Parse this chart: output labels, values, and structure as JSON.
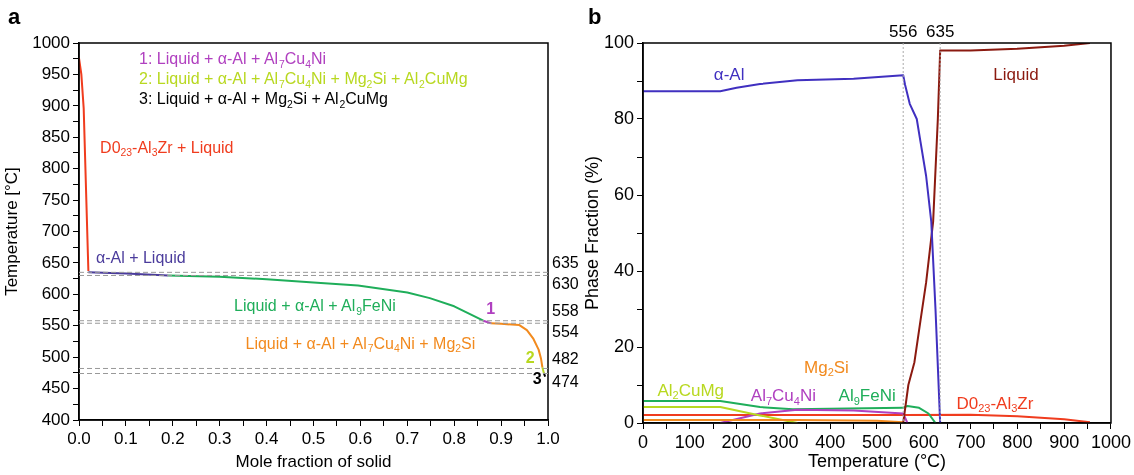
{
  "chart_data": [
    {
      "type": "line",
      "title": "a",
      "xlabel": "Mole fraction of solid",
      "ylabel": "Temperature [°C]",
      "xlim": [
        0,
        1
      ],
      "ylim": [
        400,
        1000
      ],
      "xticks": [
        {
          "value": 0,
          "label": "0.0"
        },
        {
          "value": 0.05,
          "label": null
        },
        {
          "value": 0.1,
          "label": "0.1"
        },
        {
          "value": 0.15,
          "label": null
        },
        {
          "value": 0.2,
          "label": "0.2"
        },
        {
          "value": 0.25,
          "label": null
        },
        {
          "value": 0.3,
          "label": "0.3"
        },
        {
          "value": 0.35,
          "label": null
        },
        {
          "value": 0.4,
          "label": "0.4"
        },
        {
          "value": 0.45,
          "label": null
        },
        {
          "value": 0.5,
          "label": "0.5"
        },
        {
          "value": 0.55,
          "label": null
        },
        {
          "value": 0.6,
          "label": "0.6"
        },
        {
          "value": 0.65,
          "label": null
        },
        {
          "value": 0.7,
          "label": "0.7"
        },
        {
          "value": 0.75,
          "label": null
        },
        {
          "value": 0.8,
          "label": "0.8"
        },
        {
          "value": 0.85,
          "label": null
        },
        {
          "value": 0.9,
          "label": "0.9"
        },
        {
          "value": 0.95,
          "label": null
        },
        {
          "value": 1,
          "label": "1.0"
        }
      ],
      "yticks": [
        400,
        {
          "value": 425,
          "label": null
        },
        450,
        {
          "value": 475,
          "label": null
        },
        500,
        {
          "value": 525,
          "label": null
        },
        550,
        {
          "value": 575,
          "label": null
        },
        600,
        {
          "value": 625,
          "label": null
        },
        650,
        {
          "value": 675,
          "label": null
        },
        700,
        {
          "value": 725,
          "label": null
        },
        750,
        {
          "value": 775,
          "label": null
        },
        800,
        {
          "value": 825,
          "label": null
        },
        850,
        {
          "value": 875,
          "label": null
        },
        900,
        {
          "value": 925,
          "label": null
        },
        950,
        {
          "value": 975,
          "label": null
        },
        1000
      ],
      "grid": false,
      "marker": "none",
      "series": [
        {
          "name": "D0$_{23}$-Al$_{3}$Zr + Liquid",
          "color": "#f03c1e",
          "x": [
            0,
            0.005,
            0.01,
            0.02
          ],
          "values": [
            976,
            950,
            896,
            637
          ]
        },
        {
          "name": "α-Al + Liquid",
          "color": "#4b3c9c",
          "x": [
            0.02,
            0.1,
            0.19
          ],
          "values": [
            635,
            633,
            630
          ]
        },
        {
          "name": "Liquid + α-Al + Al$_{9}$FeNi",
          "color": "#1fae5a",
          "x": [
            0.19,
            0.3,
            0.4,
            0.5,
            0.595,
            0.7,
            0.748,
            0.8,
            0.824,
            0.862
          ],
          "values": [
            630,
            628,
            624,
            619,
            614,
            603,
            594,
            581,
            572,
            558
          ]
        },
        {
          "name": "Liquid + α-Al + Al$_{7}$Cu$_{4}$Ni + Mg$_{2}$Si",
          "color": "#f28a1e",
          "x": [
            0.878,
            0.9,
            0.939,
            0.955,
            0.969,
            0.98,
            0.985,
            0.988
          ],
          "values": [
            554,
            553,
            551,
            543,
            529,
            512,
            498,
            484
          ]
        },
        {
          "name": "1",
          "color": "#b040c0",
          "x": [
            0.862,
            0.878
          ],
          "values": [
            558,
            554
          ]
        },
        {
          "name": "2",
          "color": "#b8d820",
          "x": [
            0.988,
            0.991
          ],
          "values": [
            484,
            475
          ]
        },
        {
          "name": "3",
          "color": "#000000",
          "x": [
            0.991,
            0.994
          ],
          "values": [
            475,
            469
          ]
        }
      ],
      "ref_lines": [
        {
          "axis": "y",
          "value": 635,
          "label": "635",
          "color": "#999999",
          "line_style": "dashed"
        },
        {
          "axis": "y",
          "value": 630,
          "label": "630",
          "color": "#999999",
          "line_style": "dashed"
        },
        {
          "axis": "y",
          "value": 558,
          "label": "558",
          "color": "#999999",
          "line_style": "dashed"
        },
        {
          "axis": "y",
          "value": 554,
          "label": "554",
          "color": "#999999",
          "line_style": "dashed"
        },
        {
          "axis": "y",
          "value": 482,
          "label": "482",
          "color": "#999999",
          "line_style": "dashed"
        },
        {
          "axis": "y",
          "value": 474,
          "label": "474",
          "color": "#999999",
          "line_style": "dashed"
        }
      ],
      "annotations": [
        "1: Liquid + α-Al + Al$_{7}$Cu$_{4}$Ni",
        "2: Liquid + α-Al + Al$_{7}$Cu$_{4}$Ni + Mg$_{2}$Si + Al$_{2}$CuMg",
        "3: Liquid + α-Al + Mg$_{2}$Si + Al$_{2}$CuMg"
      ]
    },
    {
      "type": "line",
      "title": "b",
      "xlabel": "Temperature (°C)",
      "ylabel": "Phase Fraction (%)",
      "xlim": [
        0,
        1000
      ],
      "ylim": [
        0,
        100
      ],
      "xticks": [
        0,
        {
          "value": 50,
          "label": null
        },
        100,
        {
          "value": 150,
          "label": null
        },
        200,
        {
          "value": 250,
          "label": null
        },
        300,
        {
          "value": 350,
          "label": null
        },
        400,
        {
          "value": 450,
          "label": null
        },
        500,
        {
          "value": 550,
          "label": null
        },
        600,
        {
          "value": 650,
          "label": null
        },
        700,
        {
          "value": 750,
          "label": null
        },
        800,
        {
          "value": 850,
          "label": null
        },
        900,
        {
          "value": 950,
          "label": null
        },
        1000
      ],
      "yticks": [
        0,
        {
          "value": 10,
          "label": null
        },
        20,
        {
          "value": 30,
          "label": null
        },
        40,
        {
          "value": 50,
          "label": null
        },
        60,
        {
          "value": 70,
          "label": null
        },
        80,
        {
          "value": 90,
          "label": null
        },
        100
      ],
      "grid": false,
      "marker": "none",
      "series": [
        {
          "name": "α-Al",
          "color": "#4030c0",
          "x": [
            0,
            165,
            200,
            250,
            330,
            450,
            556,
            560,
            570,
            585,
            593,
            605,
            616,
            625,
            635
          ],
          "values": [
            87.3,
            87.3,
            88.2,
            89.2,
            90.2,
            90.6,
            91.5,
            89,
            84,
            80,
            74,
            65,
            53,
            30,
            0
          ]
        },
        {
          "name": "Liquid",
          "color": "#8b1a10",
          "x": [
            556,
            567,
            580,
            593,
            605,
            620,
            630,
            635,
            700,
            800,
            900,
            955
          ],
          "values": [
            0,
            10,
            16,
            27,
            37,
            53,
            80,
            98,
            98,
            98.5,
            99.3,
            100
          ]
        },
        {
          "name": "Mg$_{2}$Si",
          "color": "#f28a1e",
          "x": [
            0,
            330,
            500,
            556
          ],
          "values": [
            0.8,
            0.8,
            0.6,
            0.2
          ]
        },
        {
          "name": "Al$_{2}$CuMg",
          "color": "#b8d820",
          "x": [
            0,
            165,
            250,
            330
          ],
          "values": [
            4.2,
            4.2,
            2,
            0
          ]
        },
        {
          "name": "Al$_{7}$Cu$_{4}$Ni",
          "color": "#b040c0",
          "x": [
            165,
            250,
            330,
            450,
            556,
            565
          ],
          "values": [
            0,
            2.5,
            3.5,
            3.3,
            2.5,
            0
          ]
        },
        {
          "name": "Al$_{9}$FeNi",
          "color": "#1fae5a",
          "x": [
            0,
            165,
            250,
            320,
            556,
            565,
            590,
            610,
            625
          ],
          "values": [
            5.8,
            5.8,
            4.2,
            3.6,
            4,
            4.5,
            4,
            2.5,
            0
          ]
        },
        {
          "name": "D0$_{23}$-Al$_{3}$Zr",
          "color": "#f03c1e",
          "x": [
            0,
            556,
            700,
            800,
            900,
            955
          ],
          "values": [
            2.1,
            2.1,
            2.2,
            1.8,
            1,
            0.2
          ]
        }
      ],
      "ref_lines": [
        {
          "axis": "x",
          "value": 556,
          "label": "556",
          "color": "#aaaaaa",
          "line_style": "dotted"
        },
        {
          "axis": "x",
          "value": 635,
          "label": "635",
          "color": "#aaaaaa",
          "line_style": "dotted"
        }
      ]
    }
  ]
}
